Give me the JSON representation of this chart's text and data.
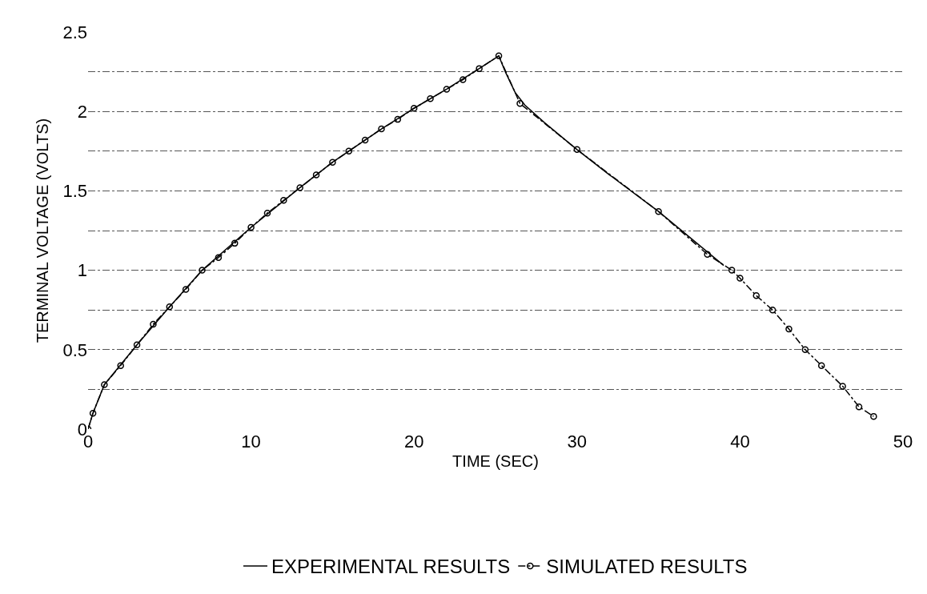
{
  "chart_data": {
    "type": "line",
    "xlabel": "TIME (SEC)",
    "ylabel": "TERMINAL VOLTAGE (VOLTS)",
    "xlim": [
      0,
      50
    ],
    "xticks": [
      0,
      10,
      20,
      30,
      40,
      50
    ],
    "ylim": [
      0,
      2.5
    ],
    "yticks": [
      0,
      {
        "value": 0.25,
        "label": null
      },
      0.5,
      {
        "value": 0.75,
        "label": null
      },
      1,
      {
        "value": 1.25,
        "label": null
      },
      1.5,
      {
        "value": 1.75,
        "label": null
      },
      2,
      {
        "value": 2.25,
        "label": null
      },
      2.5
    ],
    "grid": "y",
    "legend": "bottom",
    "series": [
      {
        "name": "EXPERIMENTAL RESULTS",
        "color": "#000000",
        "line_style": "solid",
        "marker": "none",
        "x": [
          0,
          0.3,
          1,
          3,
          5,
          7,
          10,
          13,
          15,
          18,
          20,
          22,
          24,
          25.2,
          25.6,
          26.2,
          26.8,
          28,
          30,
          32,
          35,
          37,
          39
        ],
        "values": [
          0,
          0.1,
          0.28,
          0.53,
          0.77,
          1.0,
          1.27,
          1.52,
          1.68,
          1.89,
          2.02,
          2.14,
          2.27,
          2.35,
          2.25,
          2.12,
          2.04,
          1.93,
          1.76,
          1.6,
          1.37,
          1.2,
          1.03
        ]
      },
      {
        "name": "SIMULATED RESULTS",
        "color": "#000000",
        "line_style": "dashed",
        "marker": "circle",
        "x": [
          0,
          0.3,
          1,
          2,
          3,
          4,
          5,
          6,
          7,
          8,
          9,
          10,
          11,
          12,
          13,
          14,
          15,
          16,
          17,
          18,
          19,
          20,
          21,
          22,
          23,
          24,
          25.2,
          26.5,
          30,
          35,
          38,
          39.5,
          40,
          41,
          42,
          43,
          44,
          45,
          46.3,
          47.3,
          48.2
        ],
        "values": [
          0,
          0.1,
          0.28,
          0.4,
          0.53,
          0.66,
          0.77,
          0.88,
          1.0,
          1.08,
          1.17,
          1.27,
          1.36,
          1.44,
          1.52,
          1.6,
          1.68,
          1.75,
          1.82,
          1.89,
          1.95,
          2.02,
          2.08,
          2.14,
          2.2,
          2.27,
          2.35,
          2.05,
          1.76,
          1.37,
          1.1,
          1.0,
          0.95,
          0.84,
          0.75,
          0.63,
          0.5,
          0.4,
          0.27,
          0.14,
          0.08
        ]
      }
    ]
  }
}
